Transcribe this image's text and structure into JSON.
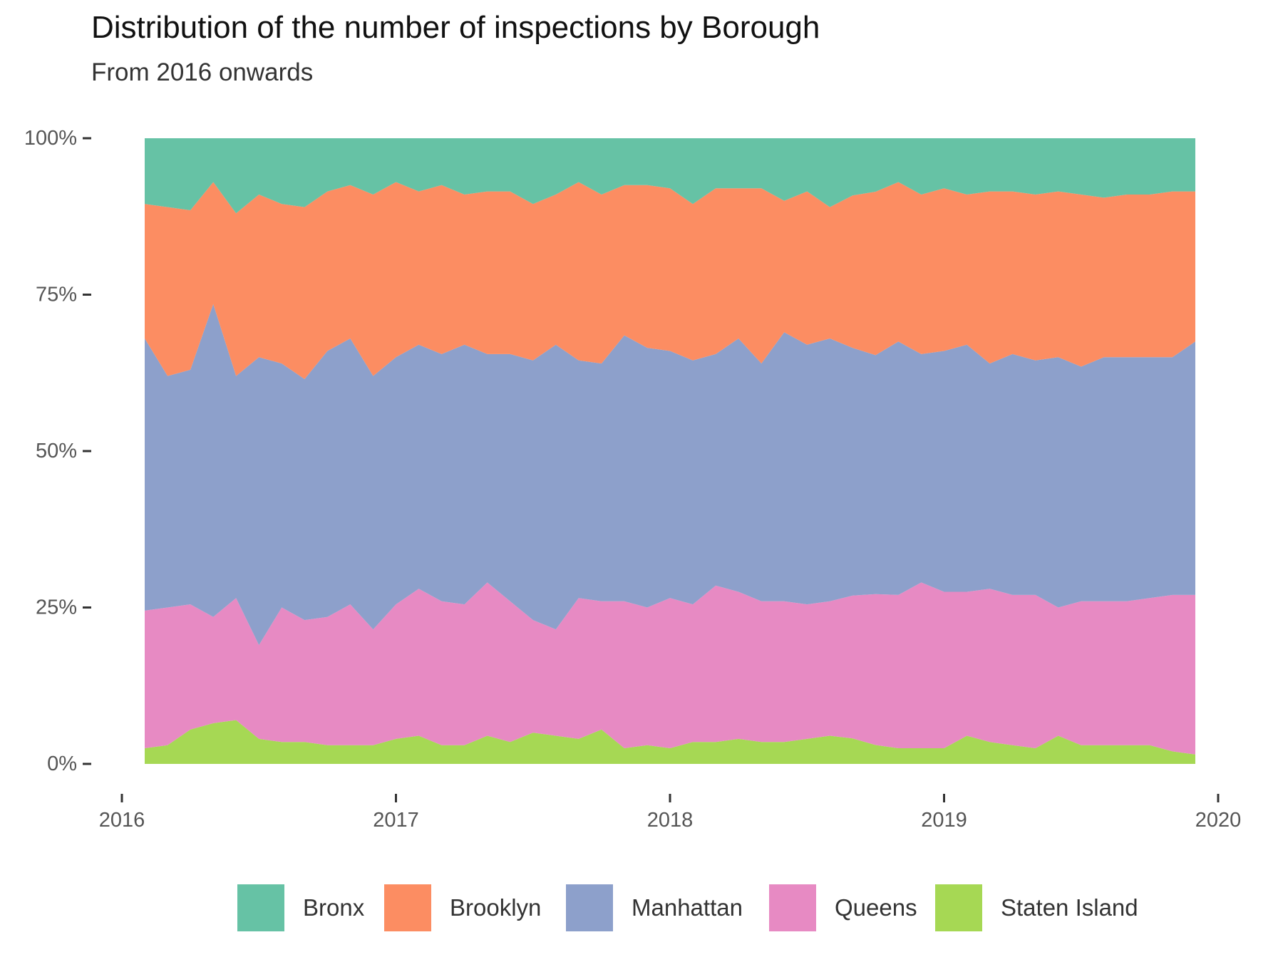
{
  "title": "Distribution of the number of inspections by Borough",
  "subtitle": "From 2016 onwards",
  "chart_data": {
    "type": "area",
    "stacked": "percent",
    "grid": false,
    "legend_position": "bottom",
    "x_axis": {
      "type": "time",
      "domain": [
        2016.0,
        2020.0
      ],
      "tick_labels": [
        "2016",
        "2017",
        "2018",
        "2019",
        "2020"
      ]
    },
    "y_axis": {
      "domain": [
        0,
        100
      ],
      "tick_values": [
        0,
        25,
        50,
        75,
        100
      ],
      "tick_labels": [
        "0%",
        "25%",
        "50%",
        "75%",
        "100%"
      ]
    },
    "x": [
      "2016-02",
      "2016-03",
      "2016-04",
      "2016-05",
      "2016-06",
      "2016-07",
      "2016-08",
      "2016-09",
      "2016-10",
      "2016-11",
      "2016-12",
      "2017-01",
      "2017-02",
      "2017-03",
      "2017-04",
      "2017-05",
      "2017-06",
      "2017-07",
      "2017-08",
      "2017-09",
      "2017-10",
      "2017-11",
      "2017-12",
      "2018-01",
      "2018-02",
      "2018-03",
      "2018-04",
      "2018-05",
      "2018-06",
      "2018-07",
      "2018-08",
      "2018-09",
      "2018-10",
      "2018-11",
      "2018-12",
      "2019-01",
      "2019-02",
      "2019-03",
      "2019-04",
      "2019-05",
      "2019-06",
      "2019-07",
      "2019-08",
      "2019-09",
      "2019-10",
      "2019-11",
      "2019-12"
    ],
    "series": [
      {
        "name": "Staten Island",
        "color": "#a6d854",
        "values": [
          2.5,
          3,
          5.5,
          6.5,
          7,
          4,
          3.5,
          3.5,
          3,
          3,
          3,
          4,
          4.5,
          3,
          3,
          4.5,
          3.5,
          5,
          4.5,
          4,
          5.5,
          2.5,
          3,
          2.5,
          3.5,
          3.5,
          4,
          3.5,
          3.5,
          4,
          4.5,
          4,
          3,
          2.5,
          2.5,
          2.5,
          4.5,
          3.5,
          3,
          2.5,
          4.5,
          3,
          3,
          3,
          3,
          2,
          1.5
        ]
      },
      {
        "name": "Queens",
        "color": "#e78ac3",
        "values": [
          22,
          22,
          20,
          17,
          19.5,
          15,
          21.5,
          19.5,
          20.5,
          22.5,
          18.5,
          21.5,
          23.5,
          23,
          22.5,
          24.5,
          22.5,
          18,
          17,
          22.5,
          20.5,
          23.5,
          22,
          24,
          22,
          25,
          23.5,
          22.5,
          22.5,
          21.5,
          21.5,
          22.5,
          24,
          24.5,
          26.5,
          25,
          23,
          24.5,
          24,
          24.5,
          20.5,
          23,
          23,
          23,
          23.5,
          25,
          25.5
        ]
      },
      {
        "name": "Manhattan",
        "color": "#8da0cb",
        "values": [
          43.5,
          37,
          37.5,
          50,
          35.5,
          46,
          39,
          38.5,
          42.5,
          42.5,
          40.5,
          39.5,
          39,
          39.5,
          41.5,
          36.5,
          39.5,
          41.5,
          45.5,
          38,
          38,
          42.5,
          41.5,
          39.5,
          39,
          37,
          40.5,
          38,
          43,
          41.5,
          42,
          39,
          38,
          40.5,
          36.5,
          38.5,
          39.5,
          36,
          38.5,
          37.5,
          40,
          37.5,
          39,
          39,
          38.5,
          38,
          40.5
        ]
      },
      {
        "name": "Brooklyn",
        "color": "#fc8d62",
        "values": [
          21.5,
          27,
          25.5,
          19.5,
          26,
          26,
          25.5,
          27.5,
          25.5,
          24.5,
          29,
          28,
          24.5,
          27,
          24,
          26,
          26,
          25,
          24,
          28.5,
          27,
          24,
          26,
          26,
          25,
          26.5,
          24,
          28,
          21,
          24.5,
          21,
          24,
          26,
          25.5,
          25.5,
          26,
          24,
          27.5,
          26,
          26.5,
          26.5,
          27.5,
          25.5,
          26,
          26,
          26.5,
          24
        ]
      },
      {
        "name": "Bronx",
        "color": "#66c2a5",
        "values": [
          10.5,
          11,
          11.5,
          7,
          12,
          9,
          10.5,
          11,
          8.5,
          7.5,
          9,
          7,
          8.5,
          7.5,
          9,
          8.5,
          8.5,
          10.5,
          9,
          7,
          9,
          7.5,
          7.5,
          8,
          10.5,
          8,
          8,
          8,
          10,
          8.5,
          11,
          9,
          8.5,
          7,
          9,
          8,
          9,
          8.5,
          8.5,
          9,
          8.5,
          9,
          9.5,
          9,
          9,
          8.5,
          8.5
        ]
      }
    ]
  },
  "legend": {
    "items": [
      {
        "label": "Bronx",
        "color": "#66c2a5"
      },
      {
        "label": "Brooklyn",
        "color": "#fc8d62"
      },
      {
        "label": "Manhattan",
        "color": "#8da0cb"
      },
      {
        "label": "Queens",
        "color": "#e78ac3"
      },
      {
        "label": "Staten Island",
        "color": "#a6d854"
      }
    ]
  }
}
